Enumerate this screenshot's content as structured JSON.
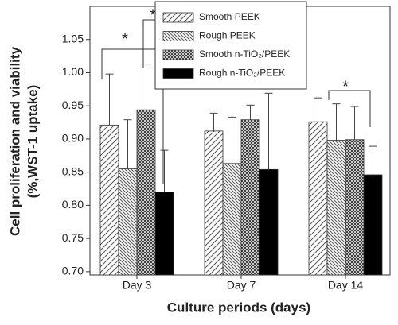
{
  "chart_data": {
    "type": "bar",
    "x_label": "Culture periods (days)",
    "y_label": "Cell proliferation and viability",
    "y_label_2": "(%,WST-1 uptake)",
    "categories": [
      "Day 3",
      "Day 7",
      "Day 14"
    ],
    "series": [
      {
        "name": "Smooth PEEK",
        "color": "#555555",
        "hatch": "forward",
        "values": [
          0.921,
          0.912,
          0.926
        ],
        "errors": [
          0.077,
          0.027,
          0.036
        ]
      },
      {
        "name": "Rough PEEK",
        "color": "#555555",
        "hatch": "back",
        "values": [
          0.855,
          0.863,
          0.898
        ],
        "errors": [
          0.074,
          0.07,
          0.055
        ]
      },
      {
        "name": "Smooth n-TiO₂/PEEK",
        "color": "#333333",
        "hatch": "cross",
        "values": [
          0.944,
          0.929,
          0.899
        ],
        "errors": [
          0.069,
          0.022,
          0.05
        ]
      },
      {
        "name": "Rough n-TiO₂/PEEK",
        "color": "#000000",
        "hatch": "none",
        "values": [
          0.82,
          0.854,
          0.846
        ],
        "errors": [
          0.063,
          0.115,
          0.043
        ]
      }
    ],
    "annotations": [
      "*",
      "*",
      "*"
    ],
    "ylim": [
      0.695,
      1.1
    ],
    "yticks": [
      {
        "value": 0.7,
        "label": "0.70"
      },
      0.75,
      {
        "value": 0.8,
        "label": "0.80"
      },
      0.85,
      {
        "value": 0.9,
        "label": "0.90"
      },
      0.95,
      {
        "value": 1.0,
        "label": "1.00"
      },
      1.05
    ],
    "legend": "upper center"
  }
}
